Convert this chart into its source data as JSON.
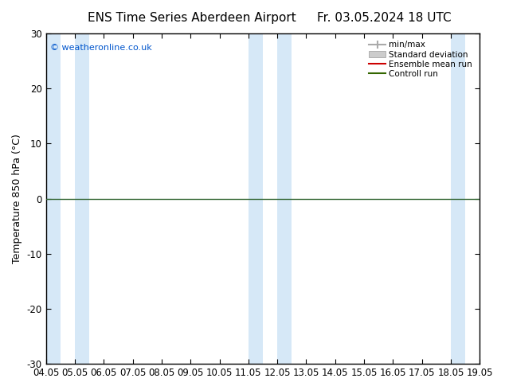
{
  "title_left": "ENS Time Series Aberdeen Airport",
  "title_right": "Fr. 03.05.2024 18 UTC",
  "ylabel": "Temperature 850 hPa (°C)",
  "ylim": [
    -30,
    30
  ],
  "yticks": [
    -30,
    -20,
    -10,
    0,
    10,
    20,
    30
  ],
  "xlim": [
    0,
    15
  ],
  "xtick_labels": [
    "04.05",
    "05.05",
    "06.05",
    "07.05",
    "08.05",
    "09.05",
    "10.05",
    "11.05",
    "12.05",
    "13.05",
    "14.05",
    "15.05",
    "16.05",
    "17.05",
    "18.05",
    "19.05"
  ],
  "shade_color": "#d6e8f7",
  "plot_bg_color": "#ffffff",
  "fig_bg_color": "#ffffff",
  "hline_y": 0,
  "hline_color": "#336633",
  "legend_entries": [
    "min/max",
    "Standard deviation",
    "Ensemble mean run",
    "Controll run"
  ],
  "legend_minmax_color": "#aaaaaa",
  "legend_std_color": "#cccccc",
  "legend_ens_color": "#cc0000",
  "legend_ctrl_color": "#336600",
  "watermark": "© weatheronline.co.uk",
  "watermark_color": "#0055cc",
  "title_fontsize": 11,
  "label_fontsize": 9,
  "tick_fontsize": 8.5,
  "shaded_bands": [
    [
      0.0,
      0.5
    ],
    [
      1.0,
      1.5
    ],
    [
      7.0,
      7.5
    ],
    [
      8.0,
      8.5
    ],
    [
      14.0,
      14.5
    ]
  ]
}
